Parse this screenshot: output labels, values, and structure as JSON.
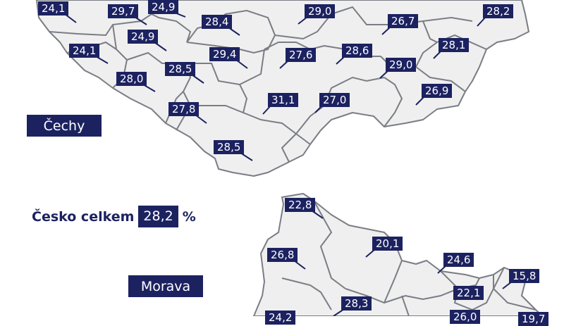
{
  "colors": {
    "label_bg": "#1c2260",
    "label_text": "#ffffff",
    "region_fill": "#efefef",
    "border": "#7b7d85"
  },
  "legend": {
    "cechy_label": "Čechy",
    "morava_label": "Morava",
    "total_label": "Česko celkem",
    "total_value": "28,2",
    "total_unit": "%"
  },
  "cechy_values": [
    "24,1",
    "29,7",
    "24,9",
    "28,4",
    "24,9",
    "24,1",
    "29,4",
    "28,5",
    "28,0",
    "27,8",
    "28,5",
    "31,1",
    "27,0",
    "27,6",
    "28,6",
    "29,0",
    "26,7",
    "29,0",
    "28,1",
    "28,2",
    "26,9"
  ],
  "morava_values": [
    "22,8",
    "26,8",
    "20,1",
    "24,6",
    "15,8",
    "22,1",
    "28,3",
    "24,2",
    "26,0",
    "19,7"
  ]
}
